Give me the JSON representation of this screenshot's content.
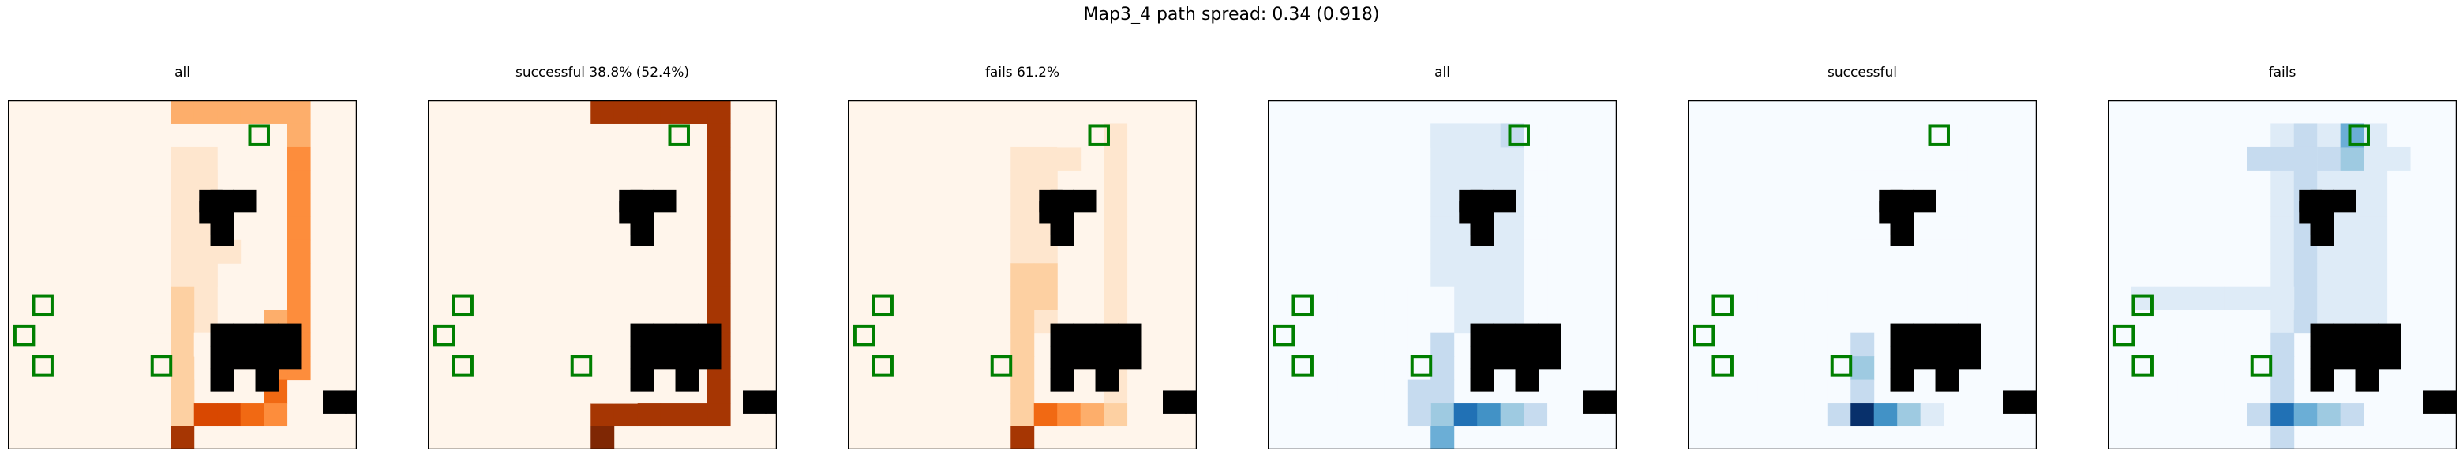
{
  "figure_title": "Map3_4 path spread: 0.34 (0.918)",
  "chart_data": [
    {
      "type": "heatmap",
      "title": "all",
      "colormap": "Oranges",
      "grid": "15x15",
      "walls": [
        [
          7,
          4
        ],
        [
          8,
          4
        ],
        [
          7,
          5
        ],
        [
          8,
          5
        ],
        [
          10,
          5
        ],
        [
          8,
          6
        ],
        [
          10,
          12
        ],
        [
          11,
          12
        ],
        [
          12,
          12
        ],
        [
          10,
          13
        ],
        [
          11,
          13
        ],
        [
          12,
          13
        ],
        [
          10,
          14
        ],
        [
          12,
          14
        ],
        [
          13,
          17
        ],
        [
          14,
          17
        ]
      ],
      "targets": [
        [
          10,
          1
        ],
        [
          1,
          8
        ],
        [
          0,
          10
        ],
        [
          1,
          12
        ],
        [
          6,
          12
        ]
      ],
      "cells": {
        "7,0": 0.3,
        "8,0": 0.3,
        "9,0": 0.3,
        "10,0": 0.3,
        "11,0": 0.3,
        "12,0": 0.3,
        "12,1": 0.4,
        "12,2": 0.4,
        "12,3": 0.4,
        "12,4": 0.45,
        "12,5": 0.45,
        "12,6": 0.45,
        "12,7": 0.45,
        "12,8": 0.5,
        "12,9": 0.5,
        "12,10": 0.55,
        "12,11": 0.6,
        "11,11": 0.6,
        "11,12": 0.65,
        "11,14": 0.7,
        "7,13": 0.2,
        "7,14": 0.2,
        "7,15": 0.25,
        "8,15": 0.7,
        "9,15": 0.75,
        "10,15": 0.7,
        "11,15": 0.55,
        "7,15b": 0.9
      }
    },
    {
      "type": "heatmap",
      "title": "successful 38.8% (52.4%)",
      "colormap": "Oranges"
    },
    {
      "type": "heatmap",
      "title": "fails 61.2%",
      "colormap": "Oranges"
    },
    {
      "type": "heatmap",
      "title": "all",
      "colormap": "Blues"
    },
    {
      "type": "heatmap",
      "title": "successful",
      "colormap": "Blues"
    },
    {
      "type": "heatmap",
      "title": "fails",
      "colormap": "Blues"
    }
  ]
}
